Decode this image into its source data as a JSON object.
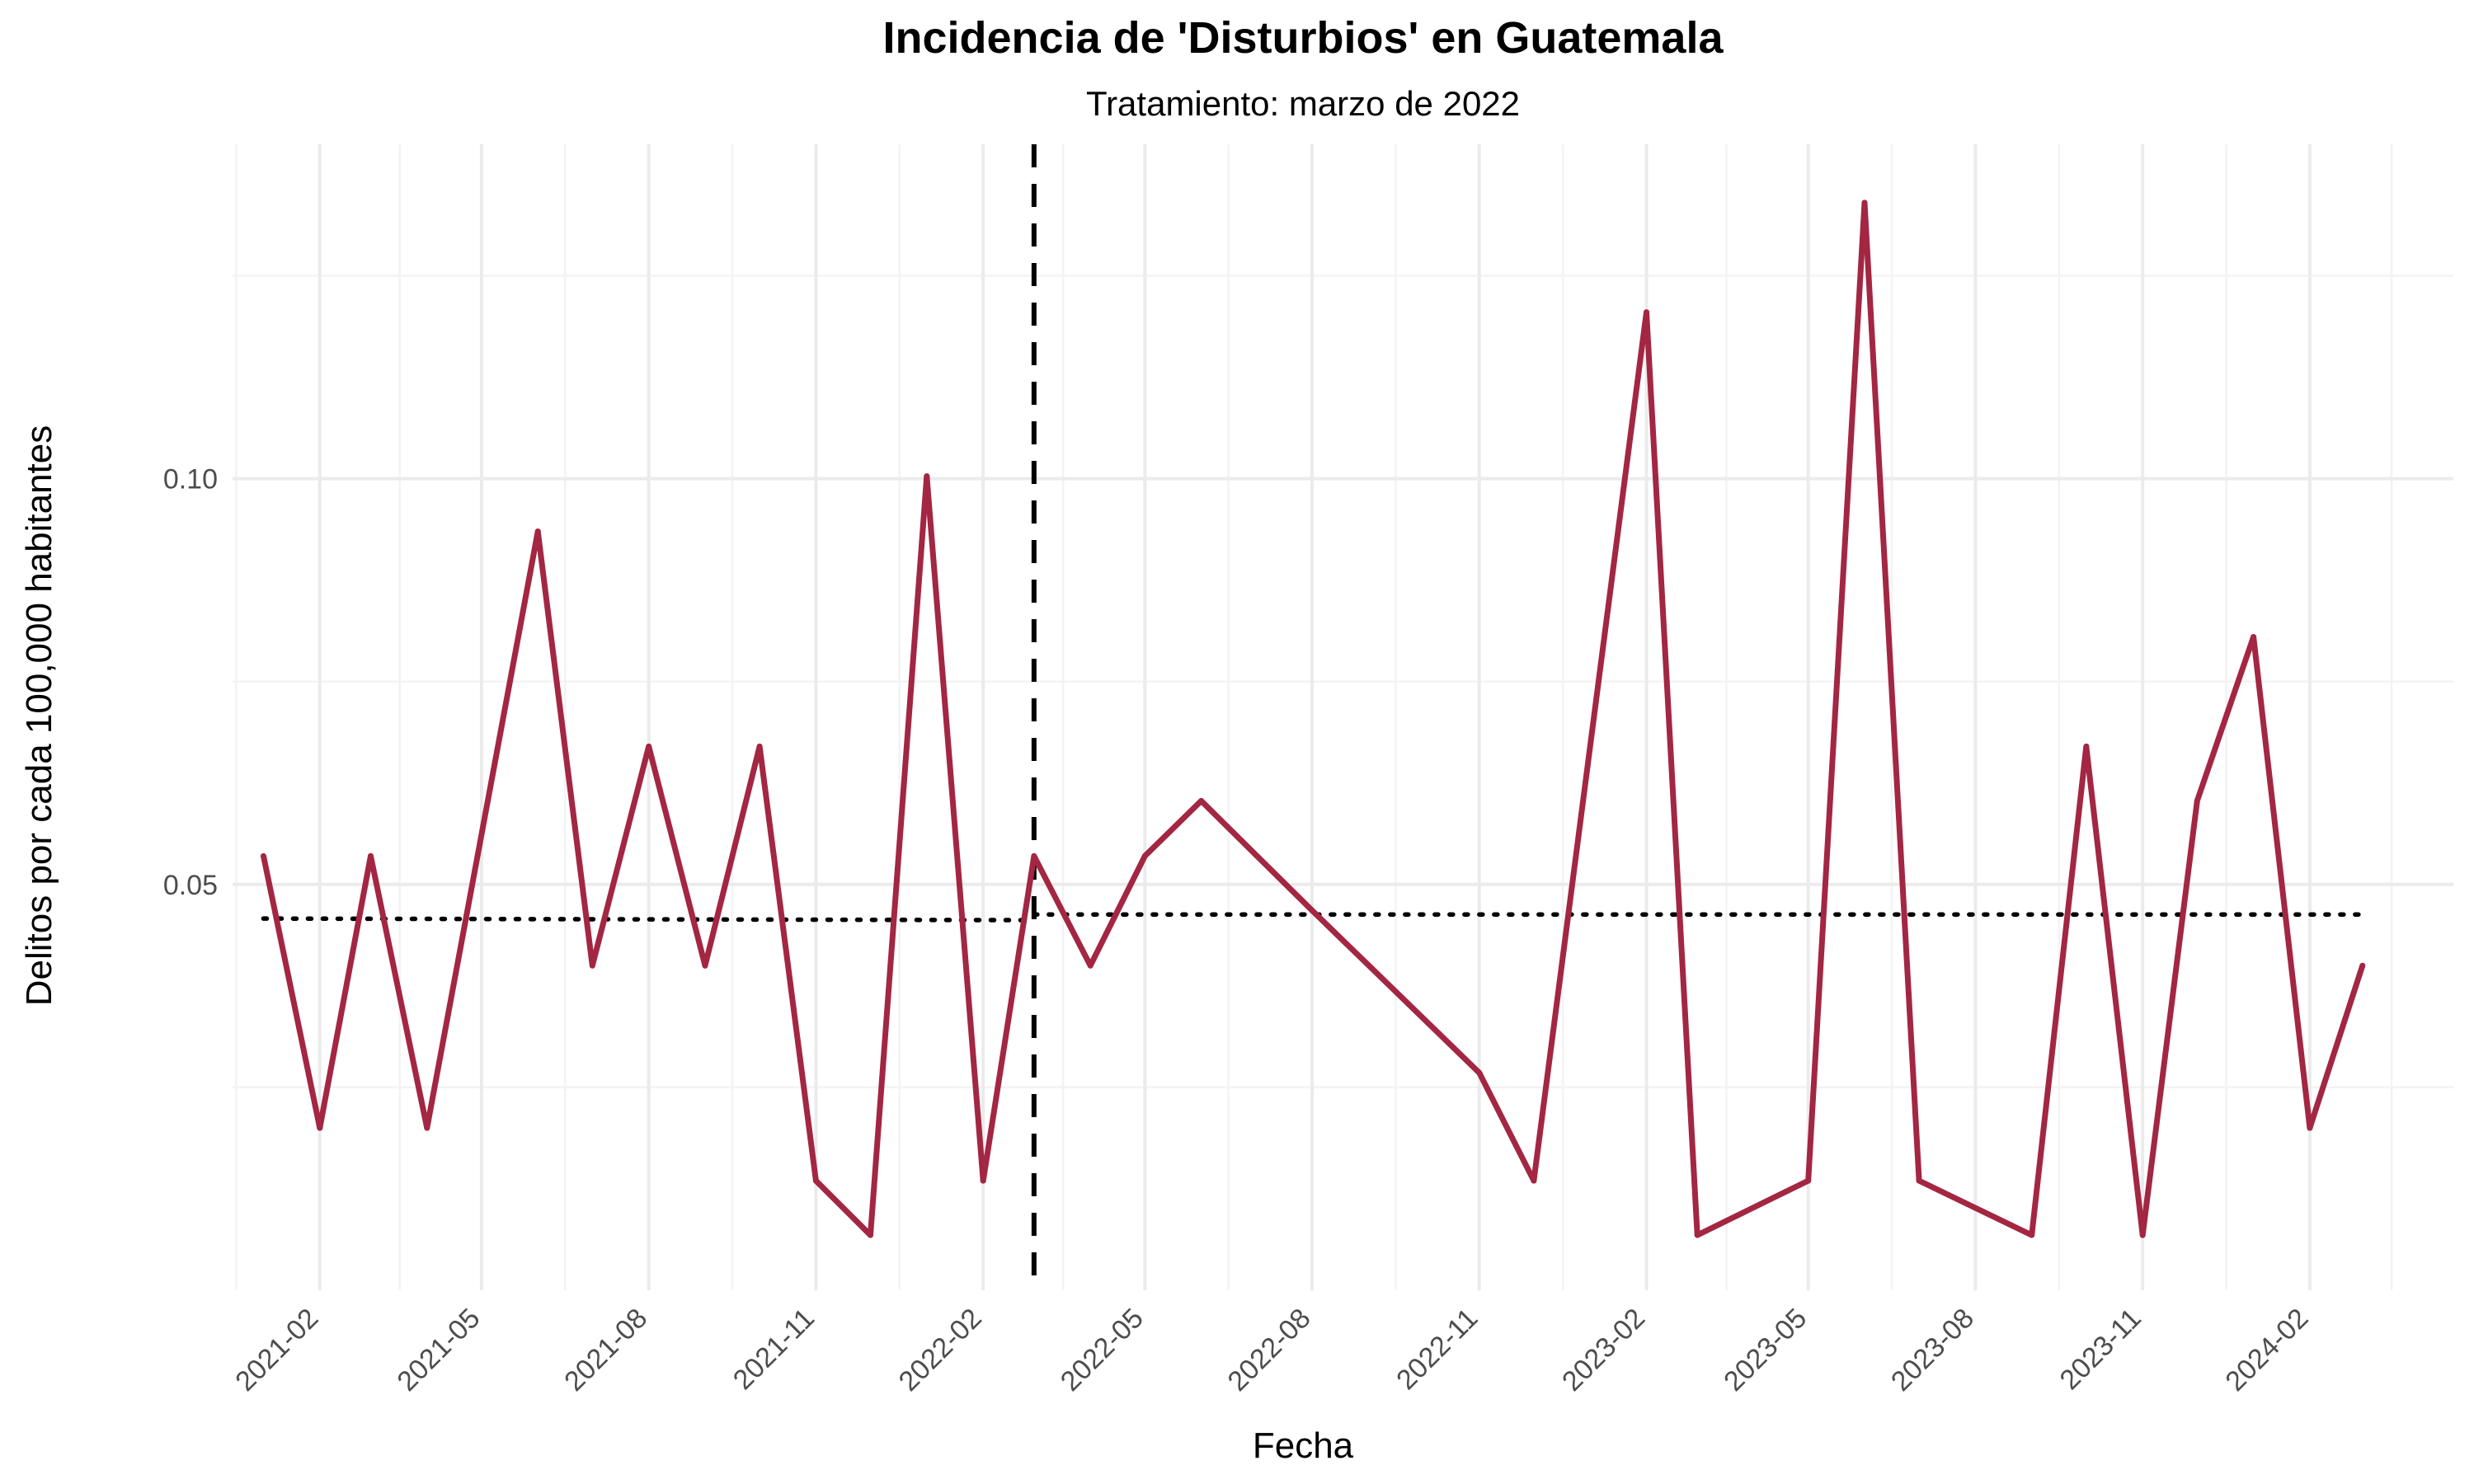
{
  "chart_data": {
    "type": "line",
    "title": "Incidencia de 'Disturbios' en Guatemala",
    "subtitle": "Tratamiento: marzo de 2022",
    "xlabel": "Fecha",
    "ylabel": "Delitos por cada 100,000 habitantes",
    "x_ticks": [
      "2021-02",
      "2021-05",
      "2021-08",
      "2021-11",
      "2022-02",
      "2022-05",
      "2022-08",
      "2022-11",
      "2023-02",
      "2023-05",
      "2023-08",
      "2023-11",
      "2024-02"
    ],
    "y_ticks": [
      0.05,
      0.1
    ],
    "y_tick_labels": [
      "0.05",
      "0.10"
    ],
    "ylim": [
      0.0,
      0.1412
    ],
    "xlim": [
      "2020-12-15",
      "2024-04-20"
    ],
    "grid": true,
    "series": [
      {
        "color": "#a32642",
        "x": [
          "2021-01",
          "2021-02",
          "2021-03",
          "2021-04",
          "2021-06",
          "2021-07",
          "2021-08",
          "2021-09",
          "2021-10",
          "2021-11",
          "2021-12",
          "2022-01",
          "2022-02",
          "2022-03",
          "2022-04",
          "2022-05",
          "2022-06",
          "2022-08",
          "2022-11",
          "2022-12",
          "2023-02",
          "2023-03",
          "2023-05",
          "2023-06",
          "2023-07",
          "2023-09",
          "2023-10",
          "2023-11",
          "2023-12",
          "2024-01",
          "2024-02",
          "2024-03"
        ],
        "values": [
          0.0535,
          0.02,
          0.0535,
          0.02,
          0.0935,
          0.04,
          0.067,
          0.04,
          0.067,
          0.0135,
          0.0068,
          0.1003,
          0.0135,
          0.0535,
          0.04,
          0.0535,
          0.0603,
          0.0468,
          0.0268,
          0.0135,
          0.1205,
          0.0068,
          0.0135,
          0.134,
          0.0135,
          0.0068,
          0.067,
          0.0068,
          0.0603,
          0.0805,
          0.02,
          0.04
        ]
      }
    ],
    "reference_lines": {
      "treatment_date": "2022-03-01",
      "pre_mean": {
        "from": "2021-01",
        "to": "2022-03-01",
        "start": 0.0458,
        "end": 0.0456
      },
      "post_mean": {
        "from": "2022-03-01",
        "to": "2024-03",
        "start": 0.0463,
        "end": 0.0463
      }
    }
  }
}
